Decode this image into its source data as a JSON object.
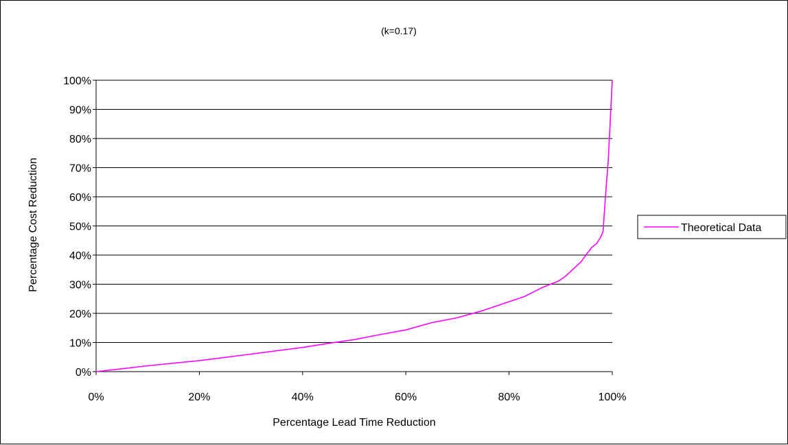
{
  "chart_data": {
    "type": "line",
    "title": "(k=0.17)",
    "xlabel": "Percentage Lead Time Reduction",
    "ylabel": "Percentage Cost Reduction",
    "xlim": [
      0,
      100
    ],
    "ylim": [
      0,
      100
    ],
    "x_ticks": [
      "0%",
      "20%",
      "40%",
      "60%",
      "80%",
      "100%"
    ],
    "y_ticks": [
      "0%",
      "10%",
      "20%",
      "30%",
      "40%",
      "50%",
      "60%",
      "70%",
      "80%",
      "90%",
      "100%"
    ],
    "grid": "horizontal",
    "legend": "right",
    "series": [
      {
        "name": "Theoretical Data",
        "color": "#FF00FF",
        "x": [
          0,
          5,
          10,
          20,
          30,
          40,
          45,
          50,
          55,
          60,
          65,
          70,
          75,
          80,
          83,
          86,
          88,
          89.5,
          91,
          92,
          94,
          95,
          96,
          97,
          97.7,
          98.2,
          98.4,
          98.8,
          99.2,
          99.5,
          100
        ],
        "y": [
          0,
          1,
          2,
          3.8,
          6,
          8.3,
          9.7,
          11,
          12.7,
          14.3,
          16.8,
          18.5,
          21,
          24,
          25.8,
          28.5,
          30,
          31,
          32.8,
          34.5,
          37.8,
          40.3,
          42.6,
          44,
          46,
          48,
          53,
          63,
          72,
          82,
          100
        ]
      }
    ]
  }
}
